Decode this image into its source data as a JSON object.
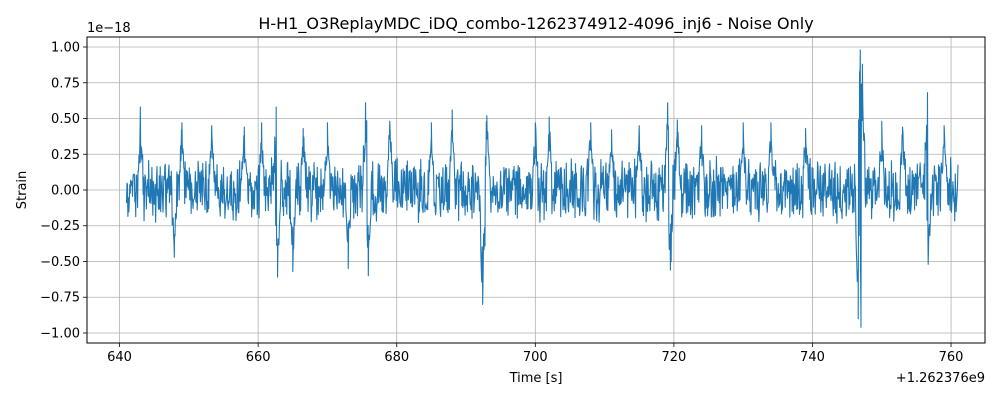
{
  "chart_data": {
    "type": "line",
    "title": "H-H1_O3ReplayMDC_iDQ_combo-1262374912-4096_inj6 - Noise Only",
    "xlabel": "Time [s]",
    "ylabel": "Strain",
    "x_offset_label": "+1.262376e9",
    "y_scale_label": "1e−18",
    "xlim": [
      635.3,
      764.9
    ],
    "ylim": [
      -1.07,
      1.07
    ],
    "xticks": [
      640,
      660,
      680,
      700,
      720,
      740,
      760
    ],
    "xtick_labels": [
      "640",
      "660",
      "680",
      "700",
      "720",
      "740",
      "760"
    ],
    "yticks": [
      -1.0,
      -0.75,
      -0.5,
      -0.25,
      0.0,
      0.25,
      0.5,
      0.75,
      1.0
    ],
    "ytick_labels": [
      "−1.00",
      "−0.75",
      "−0.50",
      "−0.25",
      "0.00",
      "0.25",
      "0.50",
      "0.75",
      "1.00"
    ],
    "grid": true,
    "legend": "none",
    "series": [
      {
        "color": "#1f77b4",
        "x_start": 641.0,
        "x_end": 761.0,
        "baseline_amplitude": 0.2,
        "extremes": [
          {
            "x": 643.0,
            "y": 0.52
          },
          {
            "x": 647.9,
            "y": -0.47
          },
          {
            "x": 649.0,
            "y": 0.47
          },
          {
            "x": 653.3,
            "y": 0.45
          },
          {
            "x": 658.0,
            "y": 0.44
          },
          {
            "x": 660.5,
            "y": 0.47
          },
          {
            "x": 662.6,
            "y": 0.58
          },
          {
            "x": 662.8,
            "y": -0.61
          },
          {
            "x": 665.0,
            "y": -0.57
          },
          {
            "x": 666.5,
            "y": 0.43
          },
          {
            "x": 670.0,
            "y": 0.47
          },
          {
            "x": 673.0,
            "y": -0.55
          },
          {
            "x": 675.5,
            "y": 0.61
          },
          {
            "x": 675.9,
            "y": -0.6
          },
          {
            "x": 679.0,
            "y": 0.48
          },
          {
            "x": 685.0,
            "y": 0.47
          },
          {
            "x": 688.0,
            "y": 0.56
          },
          {
            "x": 692.4,
            "y": -0.8
          },
          {
            "x": 693.0,
            "y": 0.52
          },
          {
            "x": 700.0,
            "y": 0.47
          },
          {
            "x": 702.0,
            "y": 0.51
          },
          {
            "x": 708.0,
            "y": 0.47
          },
          {
            "x": 711.0,
            "y": 0.42
          },
          {
            "x": 715.0,
            "y": 0.45
          },
          {
            "x": 719.1,
            "y": 0.61
          },
          {
            "x": 719.5,
            "y": -0.56
          },
          {
            "x": 720.5,
            "y": 0.49
          },
          {
            "x": 724.0,
            "y": 0.45
          },
          {
            "x": 730.0,
            "y": 0.47
          },
          {
            "x": 734.0,
            "y": 0.47
          },
          {
            "x": 739.0,
            "y": 0.43
          },
          {
            "x": 746.6,
            "y": -0.9
          },
          {
            "x": 746.9,
            "y": 0.98
          },
          {
            "x": 747.0,
            "y": -0.96
          },
          {
            "x": 747.2,
            "y": 0.88
          },
          {
            "x": 750.0,
            "y": 0.48
          },
          {
            "x": 753.0,
            "y": 0.44
          },
          {
            "x": 756.6,
            "y": 0.68
          },
          {
            "x": 756.7,
            "y": -0.52
          },
          {
            "x": 759.0,
            "y": 0.45
          }
        ]
      }
    ]
  }
}
